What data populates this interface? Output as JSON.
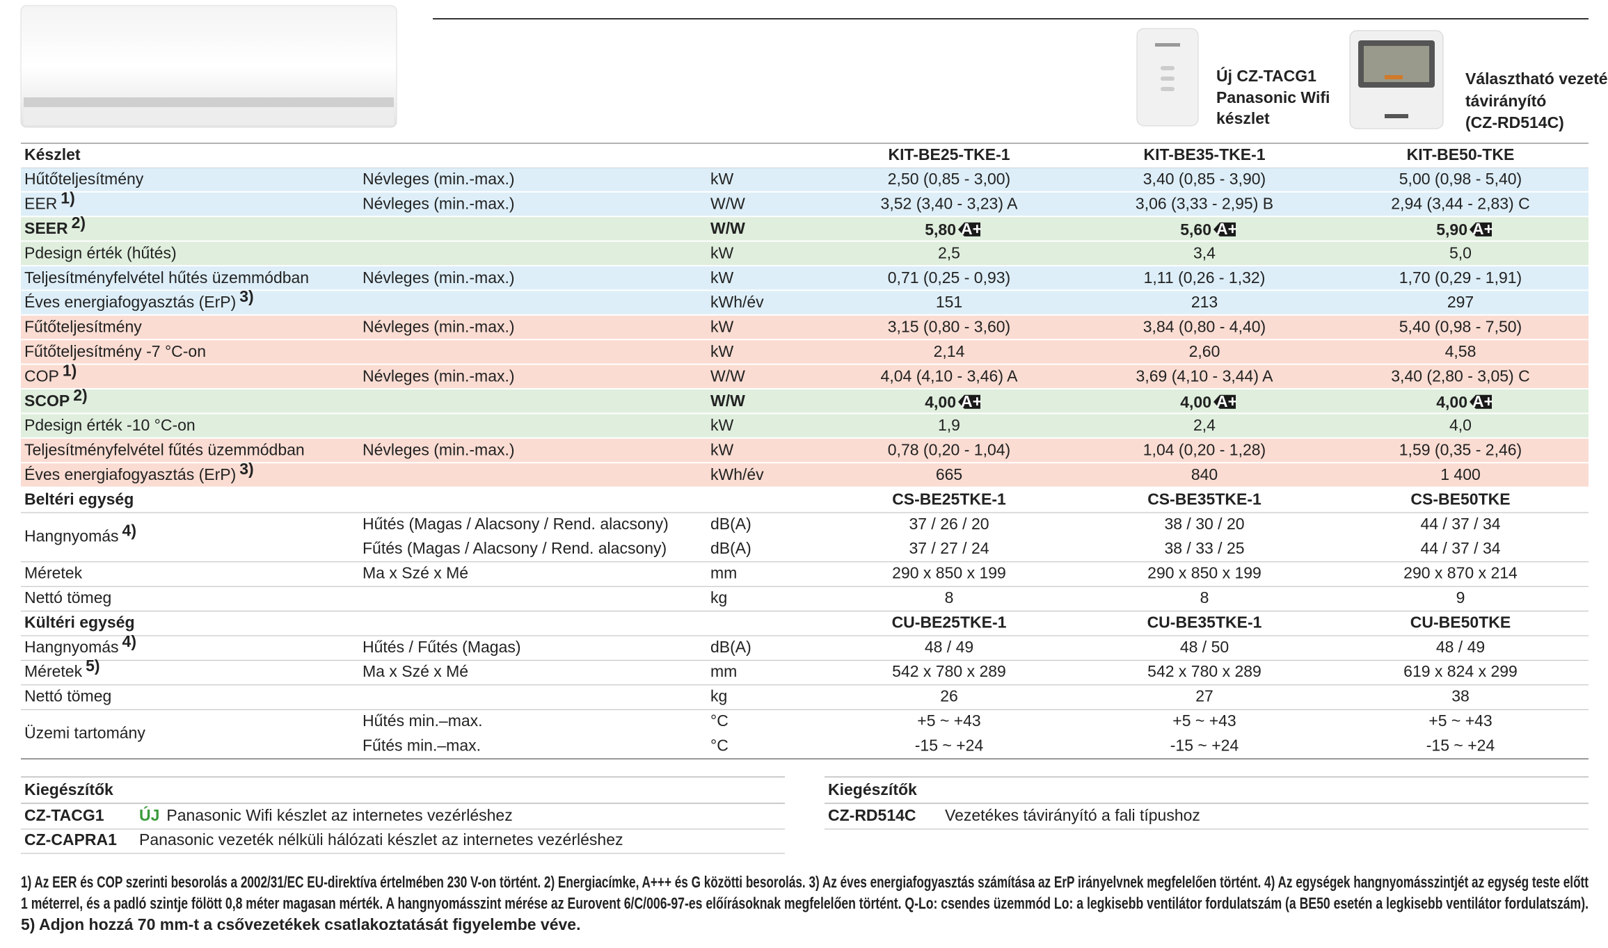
{
  "header": {
    "accessories": [
      {
        "lines": [
          "Új CZ-TACG1",
          "Panasonic Wifi",
          "készlet"
        ]
      },
      {
        "lines": [
          "Választható vezetékes",
          "távirányító",
          "(CZ-RD514C)"
        ]
      }
    ]
  },
  "table": {
    "sections": [
      {
        "title": "Készlet",
        "models": [
          "KIT-BE25-TKE-1",
          "KIT-BE35-TKE-1",
          "KIT-BE50-TKE"
        ],
        "groups": [
          {
            "label": "Hűtőteljesítmény",
            "color": "#ddeef8",
            "lines": [
              {
                "sub": "Névleges (min.-max.)",
                "unit": "kW",
                "values": [
                  "2,50 (0,85 - 3,00)",
                  "3,40 (0,85 - 3,90)",
                  "5,00 (0,98 - 5,40)"
                ]
              }
            ]
          },
          {
            "label": "EER",
            "note": "1)",
            "color": "#ddeef8",
            "lines": [
              {
                "sub": "Névleges (min.-max.)",
                "unit": "W/W",
                "values": [
                  "3,52 (3,40 - 3,23) A",
                  "3,06 (3,33 - 2,95) B",
                  "2,94 (3,44 - 2,83) C"
                ]
              }
            ]
          },
          {
            "label": "SEER",
            "note": "2)",
            "color": "#dfeedd",
            "bold": true,
            "badge": "A+",
            "lines": [
              {
                "unit": "W/W",
                "values": [
                  "5,80",
                  "5,60",
                  "5,90"
                ]
              }
            ]
          },
          {
            "label": "Pdesign érték (hűtés)",
            "color": "#dfeedd",
            "lines": [
              {
                "unit": "kW",
                "values": [
                  "2,5",
                  "3,4",
                  "5,0"
                ]
              }
            ]
          },
          {
            "label": "Teljesítményfelvétel hűtés üzemmódban",
            "color": "#ddeef8",
            "lines": [
              {
                "sub": "Névleges (min.-max.)",
                "unit": "kW",
                "values": [
                  "0,71 (0,25 - 0,93)",
                  "1,11 (0,26 - 1,32)",
                  "1,70 (0,29 - 1,91)"
                ]
              }
            ]
          },
          {
            "label": "Éves energiafogyasztás (ErP)",
            "note": "3)",
            "color": "#ddeef8",
            "lines": [
              {
                "unit": "kWh/év",
                "values": [
                  "151",
                  "213",
                  "297"
                ]
              }
            ]
          },
          {
            "label": "Fűtőteljesítmény",
            "color": "#fadcd2",
            "lines": [
              {
                "sub": "Névleges (min.-max.)",
                "unit": "kW",
                "values": [
                  "3,15 (0,80 - 3,60)",
                  "3,84 (0,80 - 4,40)",
                  "5,40 (0,98 - 7,50)"
                ]
              }
            ]
          },
          {
            "label": "Fűtőteljesítmény -7 °C-on",
            "color": "#fadcd2",
            "lines": [
              {
                "unit": "kW",
                "values": [
                  "2,14",
                  "2,60",
                  "4,58"
                ]
              }
            ]
          },
          {
            "label": "COP",
            "note": "1)",
            "color": "#fadcd2",
            "lines": [
              {
                "sub": "Névleges (min.-max.)",
                "unit": "W/W",
                "values": [
                  "4,04 (4,10 - 3,46) A",
                  "3,69 (4,10 - 3,44) A",
                  "3,40 (2,80 - 3,05) C"
                ]
              }
            ]
          },
          {
            "label": "SCOP",
            "note": "2)",
            "color": "#dfeedd",
            "bold": true,
            "badge": "A+",
            "lines": [
              {
                "unit": "W/W",
                "values": [
                  "4,00",
                  "4,00",
                  "4,00"
                ]
              }
            ]
          },
          {
            "label": "Pdesign érték -10 °C-on",
            "color": "#dfeedd",
            "lines": [
              {
                "unit": "kW",
                "values": [
                  "1,9",
                  "2,4",
                  "4,0"
                ]
              }
            ]
          },
          {
            "label": "Teljesítményfelvétel fűtés üzemmódban",
            "color": "#fadcd2",
            "lines": [
              {
                "sub": "Névleges (min.-max.)",
                "unit": "kW",
                "values": [
                  "0,78 (0,20 - 1,04)",
                  "1,04 (0,20 - 1,28)",
                  "1,59 (0,35 - 2,46)"
                ]
              }
            ]
          },
          {
            "label": "Éves energiafogyasztás (ErP)",
            "note": "3)",
            "color": "#fadcd2",
            "lines": [
              {
                "unit": "kWh/év",
                "values": [
                  "665",
                  "840",
                  "1 400"
                ]
              }
            ]
          }
        ]
      },
      {
        "title": "Beltéri egység",
        "models": [
          "CS-BE25TKE-1",
          "CS-BE35TKE-1",
          "CS-BE50TKE"
        ],
        "groups": [
          {
            "label": "Hangnyomás",
            "note": "4)",
            "lines": [
              {
                "sub": "Hűtés (Magas / Alacsony / Rend. alacsony)",
                "unit": "dB(A)",
                "values": [
                  "37 / 26 / 20",
                  "38 / 30 / 20",
                  "44 / 37 / 34"
                ]
              },
              {
                "sub": "Fűtés (Magas / Alacsony / Rend. alacsony)",
                "unit": "dB(A)",
                "values": [
                  "37 / 27 / 24",
                  "38 / 33 / 25",
                  "44 / 37 / 34"
                ]
              }
            ]
          },
          {
            "label": "Méretek",
            "lines": [
              {
                "sub": "Ma x Szé x Mé",
                "unit": "mm",
                "values": [
                  "290 x 850 x 199",
                  "290 x 850 x 199",
                  "290 x 870 x 214"
                ]
              }
            ]
          },
          {
            "label": "Nettó tömeg",
            "lines": [
              {
                "unit": "kg",
                "values": [
                  "8",
                  "8",
                  "9"
                ]
              }
            ]
          }
        ]
      },
      {
        "title": "Kültéri egység",
        "models": [
          "CU-BE25TKE-1",
          "CU-BE35TKE-1",
          "CU-BE50TKE"
        ],
        "groups": [
          {
            "label": "Hangnyomás",
            "note": "4)",
            "lines": [
              {
                "sub": "Hűtés / Fűtés (Magas)",
                "unit": "dB(A)",
                "values": [
                  "48 / 49",
                  "48 / 50",
                  "48 / 49"
                ]
              }
            ]
          },
          {
            "label": "Méretek",
            "note": "5)",
            "lines": [
              {
                "sub": "Ma x Szé x Mé",
                "unit": "mm",
                "values": [
                  "542 x 780 x 289",
                  "542 x 780 x 289",
                  "619 x 824 x 299"
                ]
              }
            ]
          },
          {
            "label": "Nettó tömeg",
            "lines": [
              {
                "unit": "kg",
                "values": [
                  "26",
                  "27",
                  "38"
                ]
              }
            ]
          },
          {
            "label": "Üzemi tartomány",
            "lines": [
              {
                "sub": "Hűtés min.–max.",
                "unit": "°C",
                "values": [
                  "+5 ~ +43",
                  "+5 ~ +43",
                  "+5 ~ +43"
                ]
              },
              {
                "sub": "Fűtés min.–max.",
                "unit": "°C",
                "values": [
                  "-15 ~ +24",
                  "-15 ~ +24",
                  "-15 ~ +24"
                ]
              }
            ]
          }
        ]
      }
    ]
  },
  "accessories": [
    {
      "title": "Kiegészítők",
      "rows": [
        {
          "code": "CZ-TACG1",
          "tag": "ÚJ",
          "text": "Panasonic Wifi készlet az internetes vezérléshez"
        },
        {
          "code": "CZ-CAPRA1",
          "text": "Panasonic vezeték nélküli hálózati készlet az internetes vezérléshez"
        }
      ]
    },
    {
      "title": "Kiegészítők",
      "rows": [
        {
          "code": "CZ-RD514C",
          "text": "Vezetékes távirányító a fali típushoz"
        }
      ]
    }
  ],
  "footnotes": [
    "1) Az EER és COP szerinti besorolás a 2002/31/EC EU-direktíva értelmében 230 V-on történt. 2) Energiacímke, A+++ és G közötti besorolás. 3) Az éves energiafogyasztás számítása az ErP irányelvnek megfelelően történt. 4) Az egységek hangnyomásszintjét az egység teste előtt",
    "1 méterrel, és a padló szintje fölött 0,8 méter magasan mérték. A hangnyomásszint mérése az Eurovent 6/C/006-97-es előírásoknak megfelelően történt. Q-Lo: csendes üzemmód Lo: a legkisebb ventilátor fordulatszám (a BE50 esetén a legkisebb ventilátor fordulatszám).",
    "5) Adjon hozzá 70 mm-t a csővezetékek csatlakoztatását figyelembe véve."
  ]
}
